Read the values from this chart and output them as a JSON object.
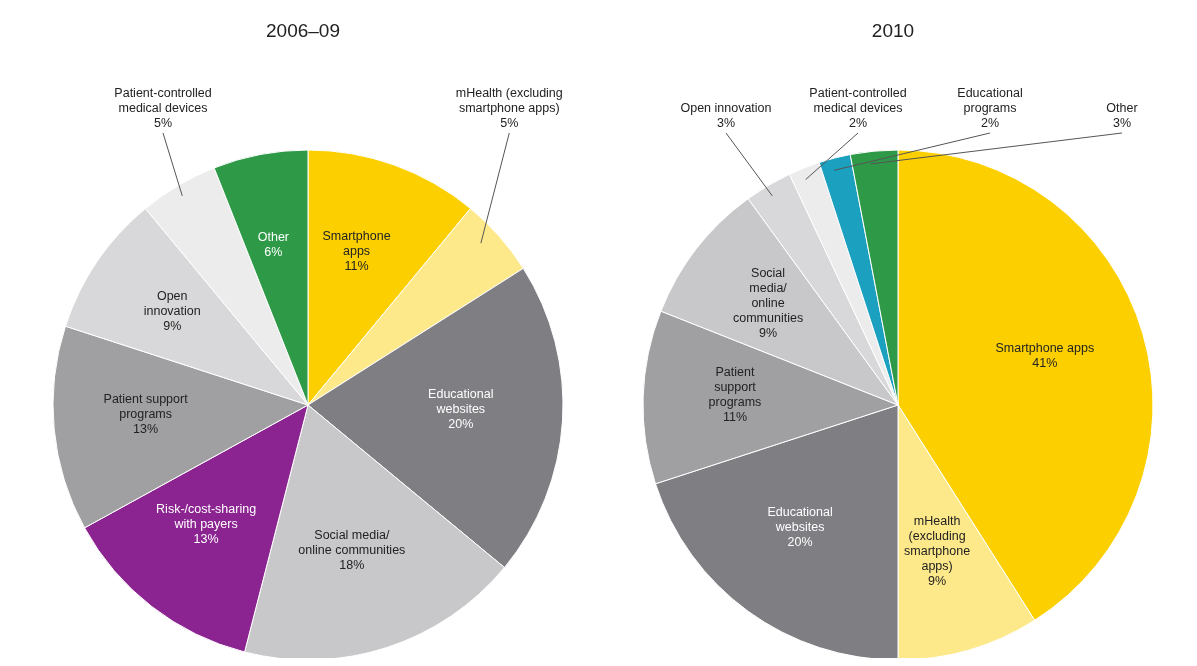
{
  "chart_data": [
    {
      "type": "pie",
      "title": "2006–09",
      "categories": [
        "Smartphone apps",
        "mHealth (excluding smartphone apps)",
        "Educational websites",
        "Social media/ online communities",
        "Risk-/cost-sharing with payers",
        "Patient support programs",
        "Open innovation",
        "Patient-controlled medical devices",
        "Other"
      ],
      "values": [
        11,
        5,
        20,
        18,
        13,
        13,
        9,
        5,
        6
      ],
      "value_labels": [
        "11%",
        "5%",
        "20%",
        "18%",
        "13%",
        "13%",
        "9%",
        "5%",
        "6%"
      ],
      "colors": [
        "#fcd000",
        "#fde98a",
        "#7f7e83",
        "#c8c8ca",
        "#8b2390",
        "#a0a0a3",
        "#d8d8da",
        "#ececec",
        "#2e9a48"
      ]
    },
    {
      "type": "pie",
      "title": "2010",
      "categories": [
        "Smartphone apps",
        "mHealth (excluding smartphone apps)",
        "Educational websites",
        "Patient support programs",
        "Social media/ online communities",
        "Open innovation",
        "Patient-controlled medical devices",
        "Educational programs",
        "Other"
      ],
      "values": [
        41,
        9,
        20,
        11,
        9,
        3,
        2,
        2,
        3
      ],
      "value_labels": [
        "41%",
        "9%",
        "20%",
        "11%",
        "9%",
        "3%",
        "2%",
        "2%",
        "3%"
      ],
      "colors": [
        "#fcd000",
        "#fde98a",
        "#7f7e83",
        "#a0a0a3",
        "#c8c8ca",
        "#d8d8da",
        "#ececec",
        "#1ba0c0",
        "#2e9a48"
      ]
    }
  ]
}
